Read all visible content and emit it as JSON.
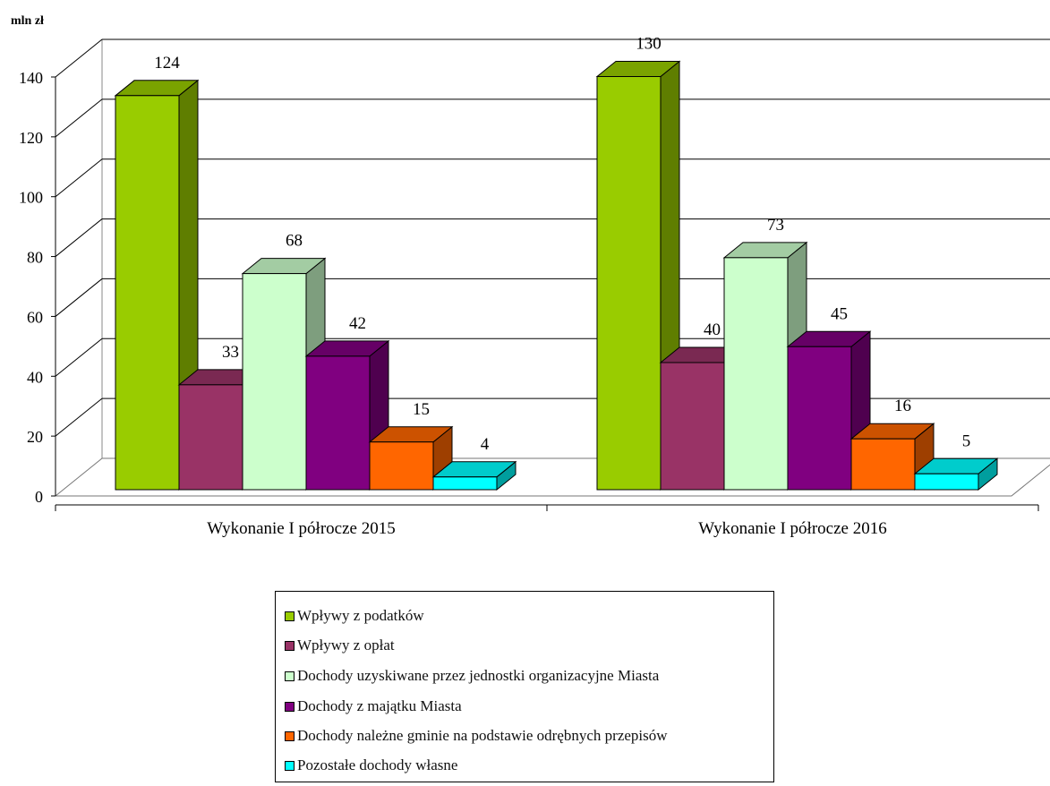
{
  "chart_data": {
    "type": "bar",
    "unit_label": "mln zł",
    "categories": [
      "Wykonanie I półrocze 2015",
      "Wykonanie I półrocze 2016"
    ],
    "series": [
      {
        "name": "Wpływy z podatków",
        "values": [
          124,
          130
        ],
        "color": "#99cc00"
      },
      {
        "name": "Wpływy z opłat",
        "values": [
          33,
          40
        ],
        "color": "#993366"
      },
      {
        "name": "Dochody uzyskiwane przez jednostki organizacyjne Miasta",
        "values": [
          68,
          73
        ],
        "color": "#ccffcc"
      },
      {
        "name": "Dochody z majątku Miasta",
        "values": [
          42,
          45
        ],
        "color": "#800080"
      },
      {
        "name": "Dochody należne gminie na podstawie odrębnych przepisów",
        "values": [
          15,
          16
        ],
        "color": "#ff6600"
      },
      {
        "name": "Pozostałe dochody własne",
        "values": [
          4,
          5
        ],
        "color": "#00ffff"
      }
    ],
    "y_ticks": [
      "0",
      "20",
      "40",
      "60",
      "80",
      "100",
      "120",
      "140"
    ],
    "ylim": [
      0,
      140
    ],
    "grid": true,
    "legend_position": "bottom"
  }
}
